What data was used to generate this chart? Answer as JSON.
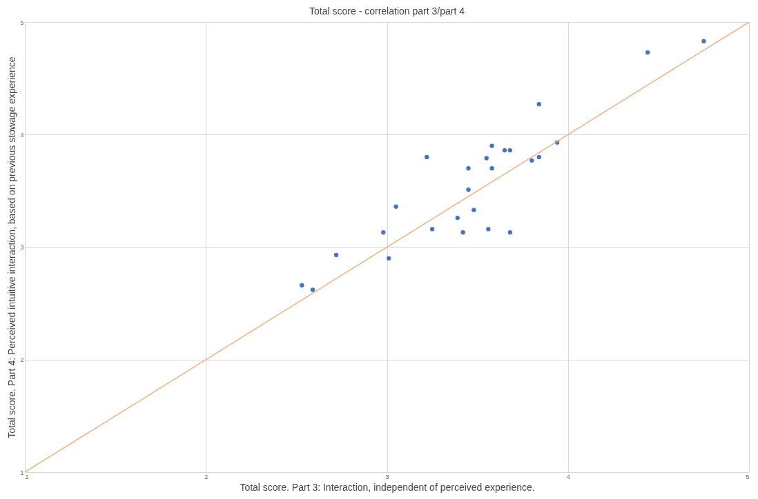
{
  "chart_data": {
    "type": "scatter",
    "title": "Total score - correlation part 3/part 4",
    "xlabel": "Total score. Part 3: Interaction, independent of perceived experience.",
    "ylabel": "Total score. Part 4: Perceived intuitive interaction, based on previous stowage experience",
    "xlim": [
      1,
      5
    ],
    "ylim": [
      1,
      5
    ],
    "xticks": [
      1,
      2,
      3,
      4,
      5
    ],
    "yticks": [
      1,
      2,
      3,
      4,
      5
    ],
    "grid": true,
    "series": [
      {
        "color": "#4472c4",
        "marker": "circle",
        "x": [
          2.53,
          2.59,
          2.72,
          2.98,
          3.01,
          3.05,
          3.22,
          3.25,
          3.39,
          3.42,
          3.45,
          3.45,
          3.48,
          3.55,
          3.56,
          3.58,
          3.58,
          3.65,
          3.68,
          3.68,
          3.8,
          3.84,
          3.84,
          3.94,
          4.44,
          4.75
        ],
        "values": [
          2.66,
          2.62,
          2.93,
          3.13,
          2.9,
          3.36,
          3.8,
          3.16,
          3.26,
          3.13,
          3.51,
          3.7,
          3.33,
          3.79,
          3.16,
          3.9,
          3.7,
          3.86,
          3.86,
          3.13,
          3.77,
          3.8,
          4.27,
          3.93,
          4.73,
          4.83
        ]
      },
      {
        "type": "line",
        "color": "#f4b183",
        "marker": "none",
        "x": [
          1,
          5
        ],
        "values": [
          1,
          5
        ]
      }
    ]
  }
}
